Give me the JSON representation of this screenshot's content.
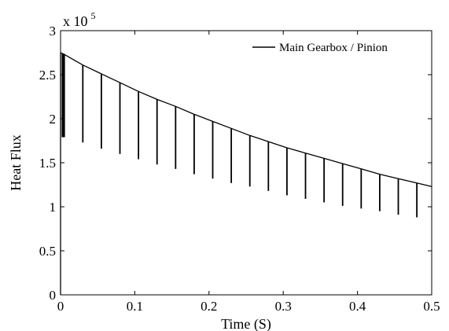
{
  "chart_data": {
    "type": "line",
    "title": "",
    "xlabel": "Time (S)",
    "ylabel": "Heat Flux",
    "xlim": [
      0,
      0.5
    ],
    "ylim": [
      0,
      3
    ],
    "y_multiplier": {
      "base": "x 10",
      "exponent": "5"
    },
    "x_ticks": [
      "0",
      "0.1",
      "0.2",
      "0.3",
      "0.4",
      "0.5"
    ],
    "y_ticks": [
      "0",
      "0.5",
      "1",
      "1.5",
      "2",
      "2.5",
      "3"
    ],
    "grid": false,
    "legend_position": "top-right",
    "series": [
      {
        "name": "Main Gearbox / Pinion",
        "color": "#000000",
        "start": [
          0,
          2.75
        ],
        "envelope": [
          [
            0,
            2.75
          ],
          [
            0.005,
            2.73
          ],
          [
            0.03,
            2.61
          ],
          [
            0.055,
            2.51
          ],
          [
            0.08,
            2.41
          ],
          [
            0.105,
            2.31
          ],
          [
            0.13,
            2.22
          ],
          [
            0.155,
            2.14
          ],
          [
            0.18,
            2.05
          ],
          [
            0.205,
            1.97
          ],
          [
            0.23,
            1.89
          ],
          [
            0.255,
            1.81
          ],
          [
            0.28,
            1.74
          ],
          [
            0.305,
            1.67
          ],
          [
            0.33,
            1.61
          ],
          [
            0.355,
            1.55
          ],
          [
            0.38,
            1.49
          ],
          [
            0.405,
            1.43
          ],
          [
            0.43,
            1.37
          ],
          [
            0.455,
            1.32
          ],
          [
            0.48,
            1.27
          ],
          [
            0.5,
            1.23
          ]
        ],
        "drops": [
          {
            "x": 0.005,
            "top": 2.73,
            "bottom": 1.79
          },
          {
            "x": 0.03,
            "top": 2.61,
            "bottom": 1.73
          },
          {
            "x": 0.055,
            "top": 2.51,
            "bottom": 1.66
          },
          {
            "x": 0.08,
            "top": 2.41,
            "bottom": 1.6
          },
          {
            "x": 0.105,
            "top": 2.31,
            "bottom": 1.54
          },
          {
            "x": 0.13,
            "top": 2.22,
            "bottom": 1.48
          },
          {
            "x": 0.155,
            "top": 2.14,
            "bottom": 1.43
          },
          {
            "x": 0.18,
            "top": 2.05,
            "bottom": 1.37
          },
          {
            "x": 0.205,
            "top": 1.97,
            "bottom": 1.32
          },
          {
            "x": 0.23,
            "top": 1.89,
            "bottom": 1.27
          },
          {
            "x": 0.255,
            "top": 1.81,
            "bottom": 1.23
          },
          {
            "x": 0.28,
            "top": 1.74,
            "bottom": 1.18
          },
          {
            "x": 0.305,
            "top": 1.67,
            "bottom": 1.13
          },
          {
            "x": 0.33,
            "top": 1.61,
            "bottom": 1.09
          },
          {
            "x": 0.355,
            "top": 1.55,
            "bottom": 1.05
          },
          {
            "x": 0.38,
            "top": 1.49,
            "bottom": 1.01
          },
          {
            "x": 0.405,
            "top": 1.43,
            "bottom": 0.98
          },
          {
            "x": 0.43,
            "top": 1.37,
            "bottom": 0.95
          },
          {
            "x": 0.455,
            "top": 1.32,
            "bottom": 0.91
          },
          {
            "x": 0.48,
            "top": 1.27,
            "bottom": 0.88
          }
        ]
      }
    ]
  }
}
